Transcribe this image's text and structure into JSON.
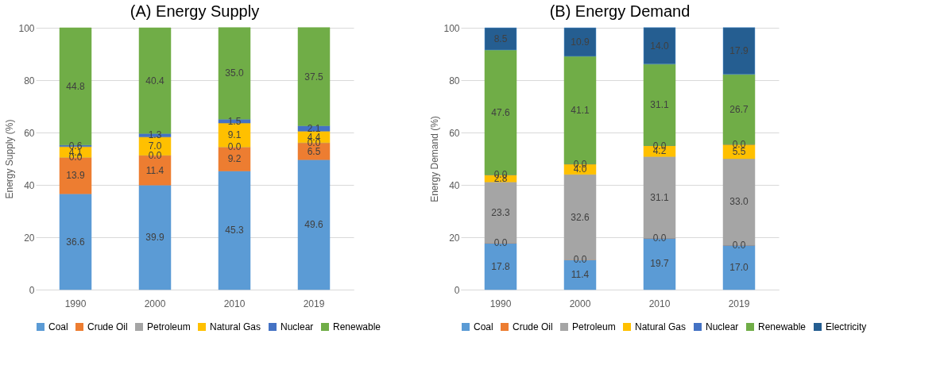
{
  "chart_data": [
    {
      "type": "bar",
      "stacked": true,
      "title": "(A) Energy Supply",
      "ylabel": "Energy Supply (%)",
      "categories": [
        "1990",
        "2000",
        "2010",
        "2019"
      ],
      "ylim": [
        0,
        100
      ],
      "yticks": [
        0,
        20,
        40,
        60,
        80,
        100
      ],
      "grid": "y",
      "legend": "bottom",
      "series": [
        {
          "name": "Coal",
          "color": "#5b9bd5",
          "values": [
            36.6,
            39.9,
            45.3,
            49.6
          ],
          "value_labels": [
            "36.6",
            "39.9",
            "45.3",
            "49.6"
          ]
        },
        {
          "name": "Crude Oil",
          "color": "#ed7d31",
          "values": [
            13.9,
            11.4,
            9.2,
            6.5
          ],
          "value_labels": [
            "13.9",
            "11.4",
            "9.2",
            "6.5"
          ]
        },
        {
          "name": "Petroleum",
          "color": "#a5a5a5",
          "values": [
            0.0,
            0.0,
            0.0,
            0.0
          ],
          "value_labels": [
            "0.0",
            "0.0",
            "0.0",
            "0.0"
          ]
        },
        {
          "name": "Natural Gas",
          "color": "#ffc000",
          "values": [
            4.1,
            7.0,
            9.1,
            4.4
          ],
          "value_labels": [
            "4.1",
            "7.0",
            "9.1",
            "4.4"
          ]
        },
        {
          "name": "Nuclear",
          "color": "#4472c4",
          "values": [
            0.6,
            1.3,
            1.5,
            2.1
          ],
          "value_labels": [
            "0.6",
            "1.3",
            "1.5",
            "2.1"
          ]
        },
        {
          "name": "Renewable",
          "color": "#70ad47",
          "values": [
            44.8,
            40.4,
            35.0,
            37.5
          ],
          "value_labels": [
            "44.8",
            "40.4",
            "35.0",
            "37.5"
          ]
        }
      ]
    },
    {
      "type": "bar",
      "stacked": true,
      "title": "(B) Energy Demand",
      "ylabel": "Energy Demand (%)",
      "categories": [
        "1990",
        "2000",
        "2010",
        "2019"
      ],
      "ylim": [
        0,
        100
      ],
      "yticks": [
        0,
        20,
        40,
        60,
        80,
        100
      ],
      "grid": "y",
      "legend": "bottom",
      "series": [
        {
          "name": "Coal",
          "color": "#5b9bd5",
          "values": [
            17.8,
            11.4,
            19.7,
            17.0
          ],
          "value_labels": [
            "17.8",
            "11.4",
            "19.7",
            "17.0"
          ]
        },
        {
          "name": "Crude Oil",
          "color": "#ed7d31",
          "values": [
            0.0,
            0.0,
            0.0,
            0.0
          ],
          "value_labels": [
            "0.0",
            "0.0",
            "0.0",
            "0.0"
          ]
        },
        {
          "name": "Petroleum",
          "color": "#a5a5a5",
          "values": [
            23.3,
            32.6,
            31.1,
            33.0
          ],
          "value_labels": [
            "23.3",
            "32.6",
            "31.1",
            "33.0"
          ]
        },
        {
          "name": "Natural Gas",
          "color": "#ffc000",
          "values": [
            2.8,
            4.0,
            4.2,
            5.5
          ],
          "value_labels": [
            "2.8",
            "4.0",
            "4.2",
            "5.5"
          ]
        },
        {
          "name": "Nuclear",
          "color": "#4472c4",
          "values": [
            0.0,
            0.0,
            0.0,
            0.0
          ],
          "value_labels": [
            "0.0",
            "0.0",
            "0.0",
            "0.0"
          ]
        },
        {
          "name": "Renewable",
          "color": "#70ad47",
          "values": [
            47.6,
            41.1,
            31.1,
            26.7
          ],
          "value_labels": [
            "47.6",
            "41.1",
            "31.1",
            "26.7"
          ]
        },
        {
          "name": "Electricity",
          "color": "#255e91",
          "values": [
            8.5,
            10.9,
            14.0,
            17.9
          ],
          "value_labels": [
            "8.5",
            "10.9",
            "14.0",
            "17.9"
          ]
        }
      ]
    }
  ]
}
